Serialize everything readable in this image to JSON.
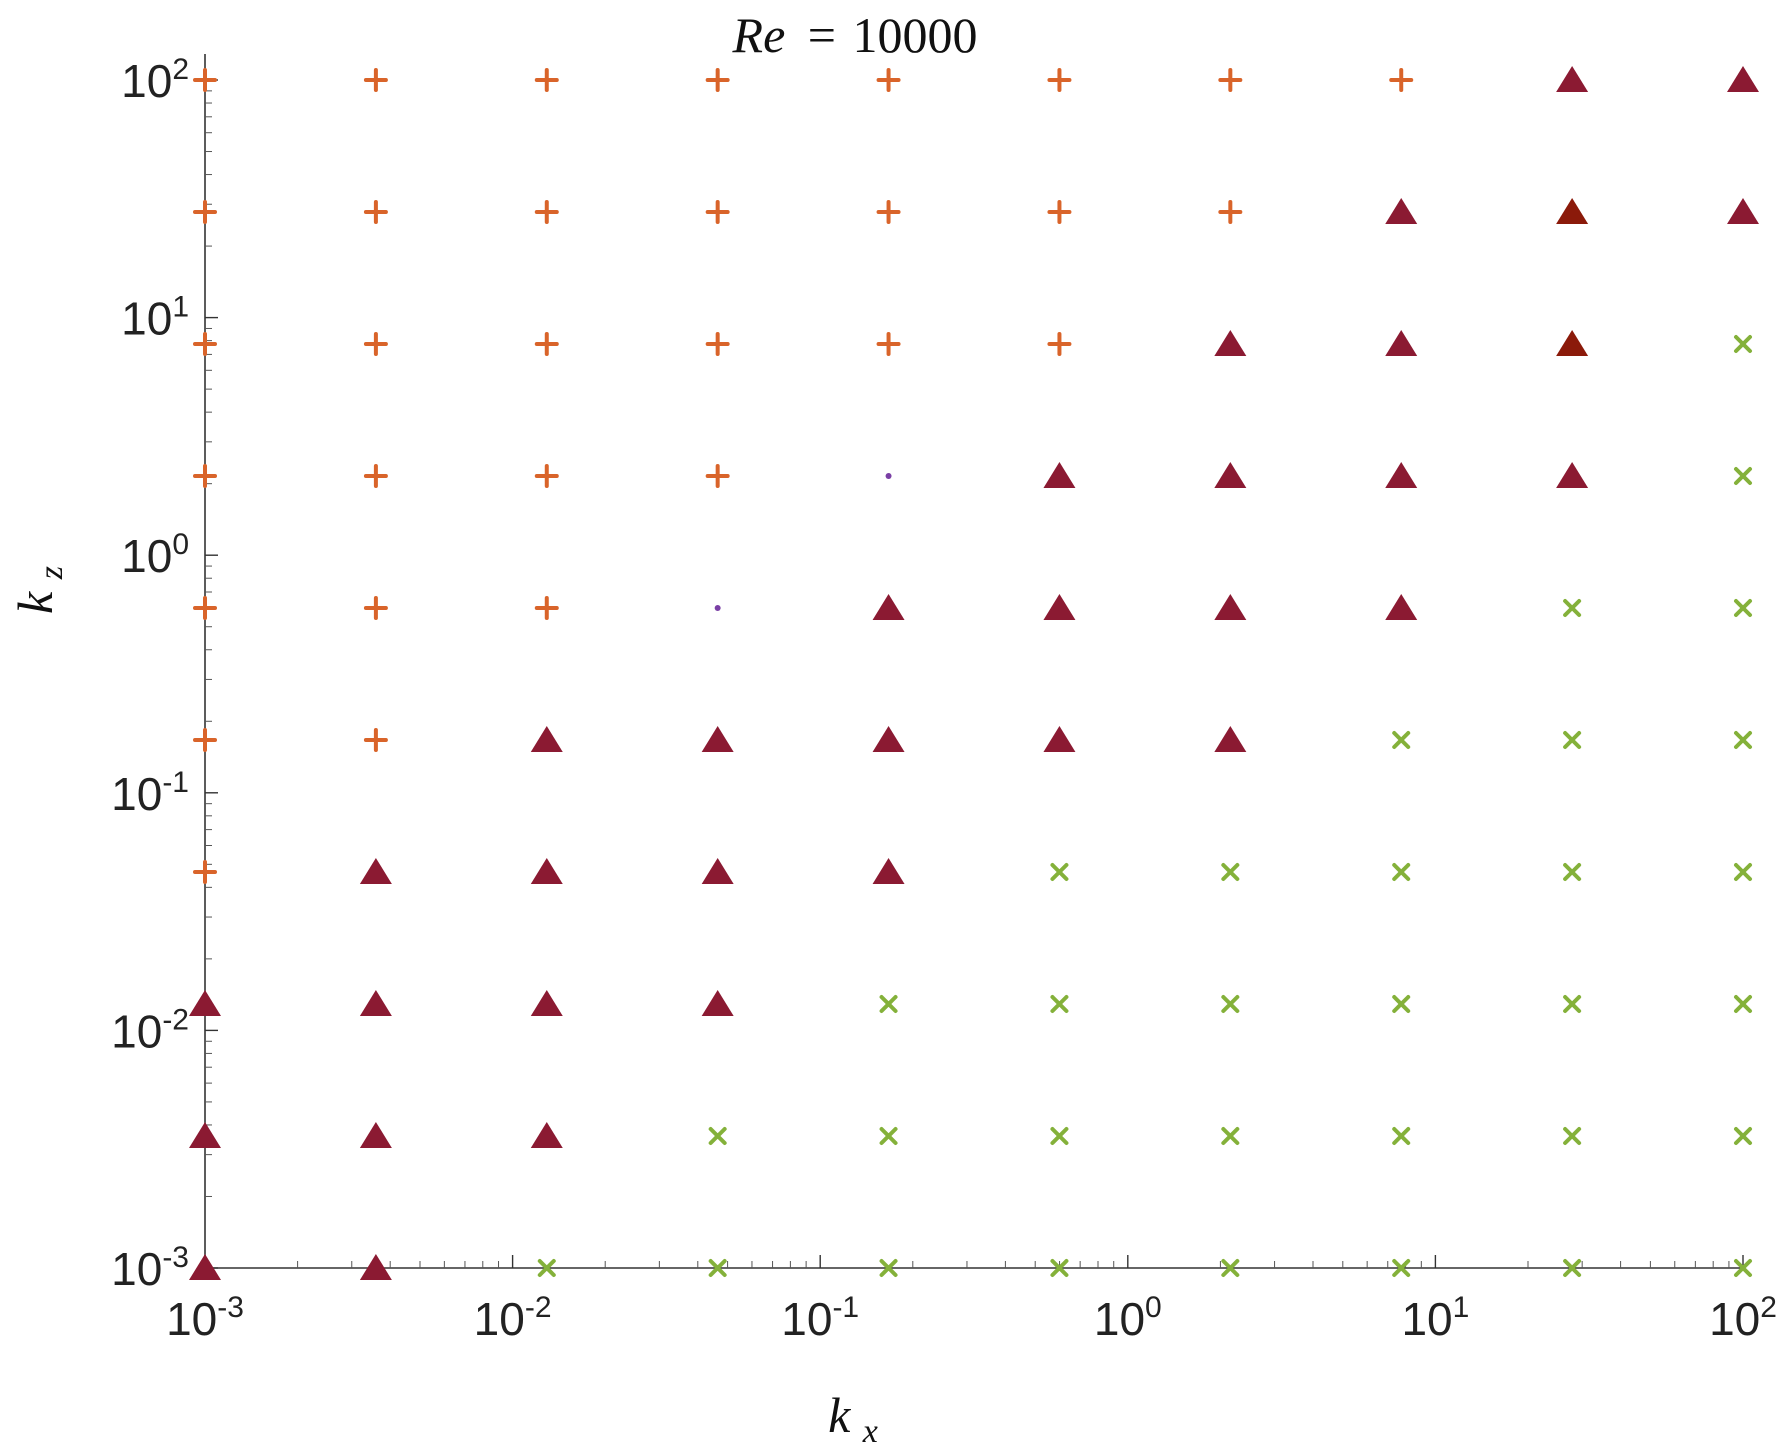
{
  "chart_data": {
    "type": "scatter",
    "title": {
      "variable": "Re",
      "operator": "=",
      "value": "10000"
    },
    "xlabel": {
      "base": "k",
      "subscript": "x"
    },
    "ylabel": {
      "base": "k",
      "subscript": "z"
    },
    "xscale": "log",
    "yscale": "log",
    "xlim": [
      0.001,
      100
    ],
    "ylim": [
      0.001,
      100
    ],
    "grid": false,
    "legend": "none",
    "x_ticks": [
      {
        "base": "10",
        "exp": "-3",
        "value": 0.001
      },
      {
        "base": "10",
        "exp": "-2",
        "value": 0.01
      },
      {
        "base": "10",
        "exp": "-1",
        "value": 0.1
      },
      {
        "base": "10",
        "exp": "0",
        "value": 1
      },
      {
        "base": "10",
        "exp": "1",
        "value": 10
      },
      {
        "base": "10",
        "exp": "2",
        "value": 100
      }
    ],
    "y_ticks": [
      {
        "base": "10",
        "exp": "-3",
        "value": 0.001
      },
      {
        "base": "10",
        "exp": "-2",
        "value": 0.01
      },
      {
        "base": "10",
        "exp": "-1",
        "value": 0.1
      },
      {
        "base": "10",
        "exp": "0",
        "value": 1
      },
      {
        "base": "10",
        "exp": "1",
        "value": 10
      },
      {
        "base": "10",
        "exp": "2",
        "value": 100
      }
    ],
    "x_values": [
      0.001,
      0.003594,
      0.012915,
      0.046416,
      0.16681,
      0.59948,
      2.1544,
      7.7426,
      27.826,
      100
    ],
    "y_values": [
      0.001,
      0.003594,
      0.012915,
      0.046416,
      0.16681,
      0.59948,
      2.1544,
      7.7426,
      27.826,
      100
    ],
    "marker_styles": {
      "plus": {
        "symbol": "plus",
        "color": "#D9642A"
      },
      "triangle": {
        "symbol": "triangle",
        "color": "#8B1A32"
      },
      "triangle_dark": {
        "symbol": "triangle",
        "color": "#8B1A0A"
      },
      "cross": {
        "symbol": "cross",
        "color": "#84B13A"
      },
      "dot": {
        "symbol": "dot",
        "color": "#7A3FA5"
      }
    },
    "grid_markers": [
      [
        "triangle",
        "triangle",
        "cross",
        "cross",
        "cross",
        "cross",
        "cross",
        "cross",
        "cross",
        "cross"
      ],
      [
        "triangle",
        "triangle",
        "triangle",
        "cross",
        "cross",
        "cross",
        "cross",
        "cross",
        "cross",
        "cross"
      ],
      [
        "triangle",
        "triangle",
        "triangle",
        "triangle",
        "cross",
        "cross",
        "cross",
        "cross",
        "cross",
        "cross"
      ],
      [
        "plus",
        "triangle",
        "triangle",
        "triangle",
        "triangle",
        "cross",
        "cross",
        "cross",
        "cross",
        "cross"
      ],
      [
        "plus",
        "plus",
        "triangle",
        "triangle",
        "triangle",
        "triangle",
        "triangle",
        "cross",
        "cross",
        "cross"
      ],
      [
        "plus",
        "plus",
        "plus",
        "dot",
        "triangle",
        "triangle",
        "triangle",
        "triangle",
        "cross",
        "cross"
      ],
      [
        "plus",
        "plus",
        "plus",
        "plus",
        "dot",
        "triangle",
        "triangle",
        "triangle",
        "triangle",
        "cross"
      ],
      [
        "plus",
        "plus",
        "plus",
        "plus",
        "plus",
        "plus",
        "triangle",
        "triangle",
        "triangle_dark",
        "cross"
      ],
      [
        "plus",
        "plus",
        "plus",
        "plus",
        "plus",
        "plus",
        "plus",
        "triangle",
        "triangle_dark",
        "triangle"
      ],
      [
        "plus",
        "plus",
        "plus",
        "plus",
        "plus",
        "plus",
        "plus",
        "plus",
        "triangle",
        "triangle"
      ]
    ]
  }
}
